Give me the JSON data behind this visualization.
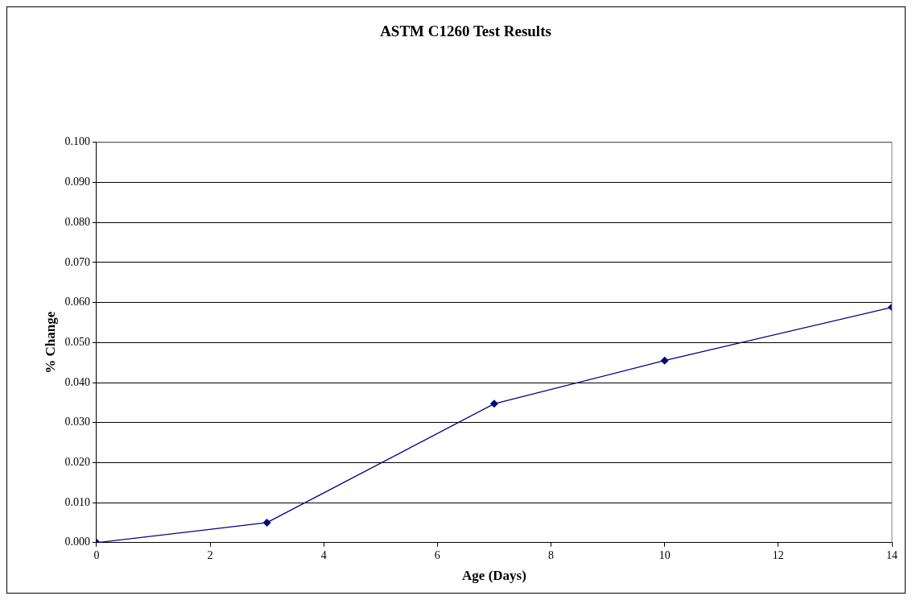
{
  "chart_data": {
    "type": "line",
    "title": "ASTM C1260 Test Results",
    "xlabel": "Age (Days)",
    "ylabel": "% Change",
    "x": [
      0,
      3,
      7,
      10,
      14
    ],
    "series": [
      {
        "color": "#000080",
        "values": [
          0.0,
          0.005,
          0.0347,
          0.0455,
          0.0588
        ]
      }
    ],
    "xlim": [
      0,
      14
    ],
    "xticks": [
      0,
      2,
      4,
      6,
      8,
      10,
      12,
      14
    ],
    "ylim": [
      0,
      0.1
    ],
    "yticks": [
      {
        "value": 0,
        "label": "0.000"
      },
      {
        "value": 0.01,
        "label": "0.010"
      },
      {
        "value": 0.02,
        "label": "0.020"
      },
      {
        "value": 0.03,
        "label": "0.030"
      },
      {
        "value": 0.04,
        "label": "0.040"
      },
      {
        "value": 0.05,
        "label": "0.050"
      },
      {
        "value": 0.06,
        "label": "0.060"
      },
      {
        "value": 0.07,
        "label": "0.070"
      },
      {
        "value": 0.08,
        "label": "0.080"
      },
      {
        "value": 0.09,
        "label": "0.090"
      },
      {
        "value": 0.1,
        "label": "0.100"
      }
    ],
    "grid": "y",
    "legend": false,
    "marker": "diamond",
    "line_style": "solid"
  }
}
